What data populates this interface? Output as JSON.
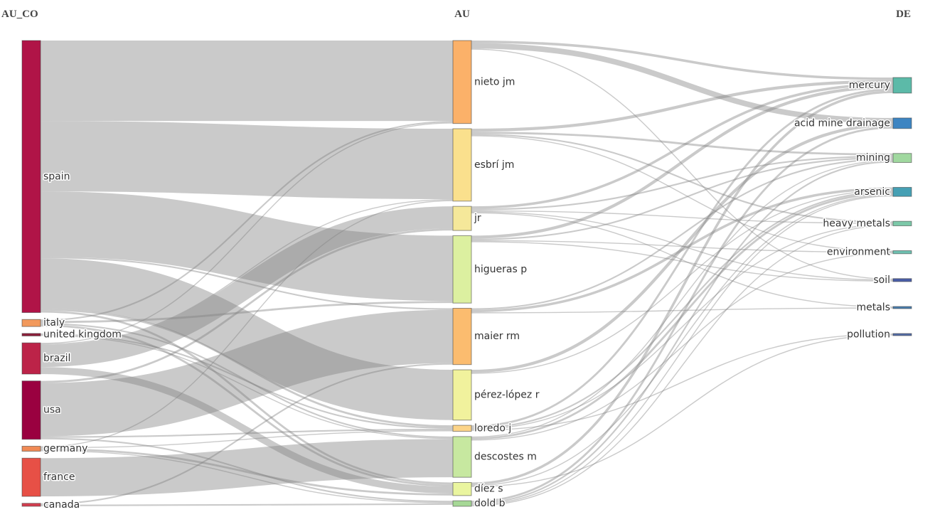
{
  "chart_data": {
    "type": "sankey",
    "columns": [
      {
        "title": "AU_CO",
        "nodes": [
          "spain",
          "italy",
          "united kingdom",
          "brazil",
          "usa",
          "germany",
          "france",
          "canada"
        ]
      },
      {
        "title": "AU",
        "nodes": [
          "nieto jm",
          "esbrí jm",
          "jr",
          "higueras p",
          "maier rm",
          "pérez-lópez r",
          "loredo j",
          "descostes m",
          "díez s",
          "dold b"
        ]
      },
      {
        "title": "DE",
        "nodes": [
          "mercury",
          "acid mine drainage",
          "mining",
          "arsenic",
          "heavy metals",
          "environment",
          "soil",
          "metals",
          "pollution"
        ]
      }
    ],
    "node_colors": {
      "spain": "#b01447",
      "italy": "#f2995c",
      "united kingdom": "#8e1f3a",
      "brazil": "#bc2348",
      "usa": "#9a0140",
      "germany": "#f08a55",
      "france": "#e75046",
      "canada": "#d53e4f",
      "nieto jm": "#fbb169",
      "esbrí jm": "#fae08d",
      "jr": "#f5e89a",
      "higueras p": "#dcf0a0",
      "maier rm": "#fbbc6f",
      "pérez-lópez r": "#f1f29d",
      "loredo j": "#fcd488",
      "descostes m": "#c7e8a0",
      "díez s": "#eaf59f",
      "dold b": "#a6d896",
      "mercury": "#5cbaa8",
      "acid mine drainage": "#3d85c2",
      "mining": "#a0d89f",
      "arsenic": "#46a0b4",
      "heavy metals": "#7cc8a8",
      "environment": "#6ec0b0",
      "soil": "#4a5ea8",
      "metals": "#4b7fae",
      "pollution": "#556ea8"
    },
    "links": [
      {
        "source": "spain",
        "target": "nieto jm",
        "value": 8
      },
      {
        "source": "spain",
        "target": "esbrí jm",
        "value": 7
      },
      {
        "source": "spain",
        "target": "higueras p",
        "value": 6.5
      },
      {
        "source": "spain",
        "target": "pérez-lópez r",
        "value": 5
      },
      {
        "source": "spain",
        "target": "maier rm",
        "value": 0.15
      },
      {
        "source": "spain",
        "target": "loredo j",
        "value": 0.2
      },
      {
        "source": "spain",
        "target": "díez s",
        "value": 0.2
      },
      {
        "source": "italy",
        "target": "nieto jm",
        "value": 0.15
      },
      {
        "source": "italy",
        "target": "higueras p",
        "value": 0.2
      },
      {
        "source": "italy",
        "target": "descostes m",
        "value": 0.15
      },
      {
        "source": "italy",
        "target": "díez s",
        "value": 0.2
      },
      {
        "source": "united kingdom",
        "target": "loredo j",
        "value": 0.15
      },
      {
        "source": "united kingdom",
        "target": "descostes m",
        "value": 0.1
      },
      {
        "source": "brazil",
        "target": "jr",
        "value": 2.2
      },
      {
        "source": "brazil",
        "target": "nieto jm",
        "value": 0.1
      },
      {
        "source": "brazil",
        "target": "esbrí jm",
        "value": 0.1
      },
      {
        "source": "brazil",
        "target": "díez s",
        "value": 0.7
      },
      {
        "source": "usa",
        "target": "maier rm",
        "value": 5.3
      },
      {
        "source": "usa",
        "target": "jr",
        "value": 0.2
      },
      {
        "source": "usa",
        "target": "loredo j",
        "value": 0.15
      },
      {
        "source": "usa",
        "target": "dold b",
        "value": 0.15
      },
      {
        "source": "germany",
        "target": "esbrí jm",
        "value": 0.1
      },
      {
        "source": "germany",
        "target": "loredo j",
        "value": 0.1
      },
      {
        "source": "germany",
        "target": "díez s",
        "value": 0.2
      },
      {
        "source": "germany",
        "target": "dold b",
        "value": 0.1
      },
      {
        "source": "france",
        "target": "descostes m",
        "value": 3.8
      },
      {
        "source": "canada",
        "target": "maier rm",
        "value": 0.15
      },
      {
        "source": "canada",
        "target": "dold b",
        "value": 0.15
      },
      {
        "source": "nieto jm",
        "target": "acid mine drainage",
        "value": 0.55
      },
      {
        "source": "nieto jm",
        "target": "mercury",
        "value": 0.25
      },
      {
        "source": "nieto jm",
        "target": "soil",
        "value": 0.1
      },
      {
        "source": "esbrí jm",
        "target": "mercury",
        "value": 0.3
      },
      {
        "source": "esbrí jm",
        "target": "mining",
        "value": 0.2
      },
      {
        "source": "esbrí jm",
        "target": "heavy metals",
        "value": 0.15
      },
      {
        "source": "esbrí jm",
        "target": "environment",
        "value": 0.1
      },
      {
        "source": "jr",
        "target": "mercury",
        "value": 0.25
      },
      {
        "source": "jr",
        "target": "mining",
        "value": 0.15
      },
      {
        "source": "jr",
        "target": "heavy metals",
        "value": 0.1
      },
      {
        "source": "jr",
        "target": "soil",
        "value": 0.1
      },
      {
        "source": "jr",
        "target": "metals",
        "value": 0.1
      },
      {
        "source": "higueras p",
        "target": "mercury",
        "value": 0.3
      },
      {
        "source": "higueras p",
        "target": "mining",
        "value": 0.15
      },
      {
        "source": "higueras p",
        "target": "environment",
        "value": 0.1
      },
      {
        "source": "higueras p",
        "target": "soil",
        "value": 0.1
      },
      {
        "source": "maier rm",
        "target": "arsenic",
        "value": 0.25
      },
      {
        "source": "maier rm",
        "target": "mining",
        "value": 0.15
      },
      {
        "source": "maier rm",
        "target": "metals",
        "value": 0.1
      },
      {
        "source": "pérez-lópez r",
        "target": "acid mine drainage",
        "value": 0.3
      },
      {
        "source": "pérez-lópez r",
        "target": "arsenic",
        "value": 0.1
      },
      {
        "source": "loredo j",
        "target": "mercury",
        "value": 0.2
      },
      {
        "source": "loredo j",
        "target": "arsenic",
        "value": 0.15
      },
      {
        "source": "loredo j",
        "target": "pollution",
        "value": 0.1
      },
      {
        "source": "loredo j",
        "target": "heavy metals",
        "value": 0.1
      },
      {
        "source": "descostes m",
        "target": "arsenic",
        "value": 0.2
      },
      {
        "source": "descostes m",
        "target": "mining",
        "value": 0.1
      },
      {
        "source": "descostes m",
        "target": "environment",
        "value": 0.1
      },
      {
        "source": "díez s",
        "target": "mercury",
        "value": 0.25
      },
      {
        "source": "díez s",
        "target": "arsenic",
        "value": 0.1
      },
      {
        "source": "díez s",
        "target": "pollution",
        "value": 0.1
      },
      {
        "source": "dold b",
        "target": "acid mine drainage",
        "value": 0.2
      },
      {
        "source": "dold b",
        "target": "mining",
        "value": 0.15
      },
      {
        "source": "dold b",
        "target": "arsenic",
        "value": 0.1
      },
      {
        "source": "dold b",
        "target": "heavy metals",
        "value": 0.1
      }
    ]
  }
}
